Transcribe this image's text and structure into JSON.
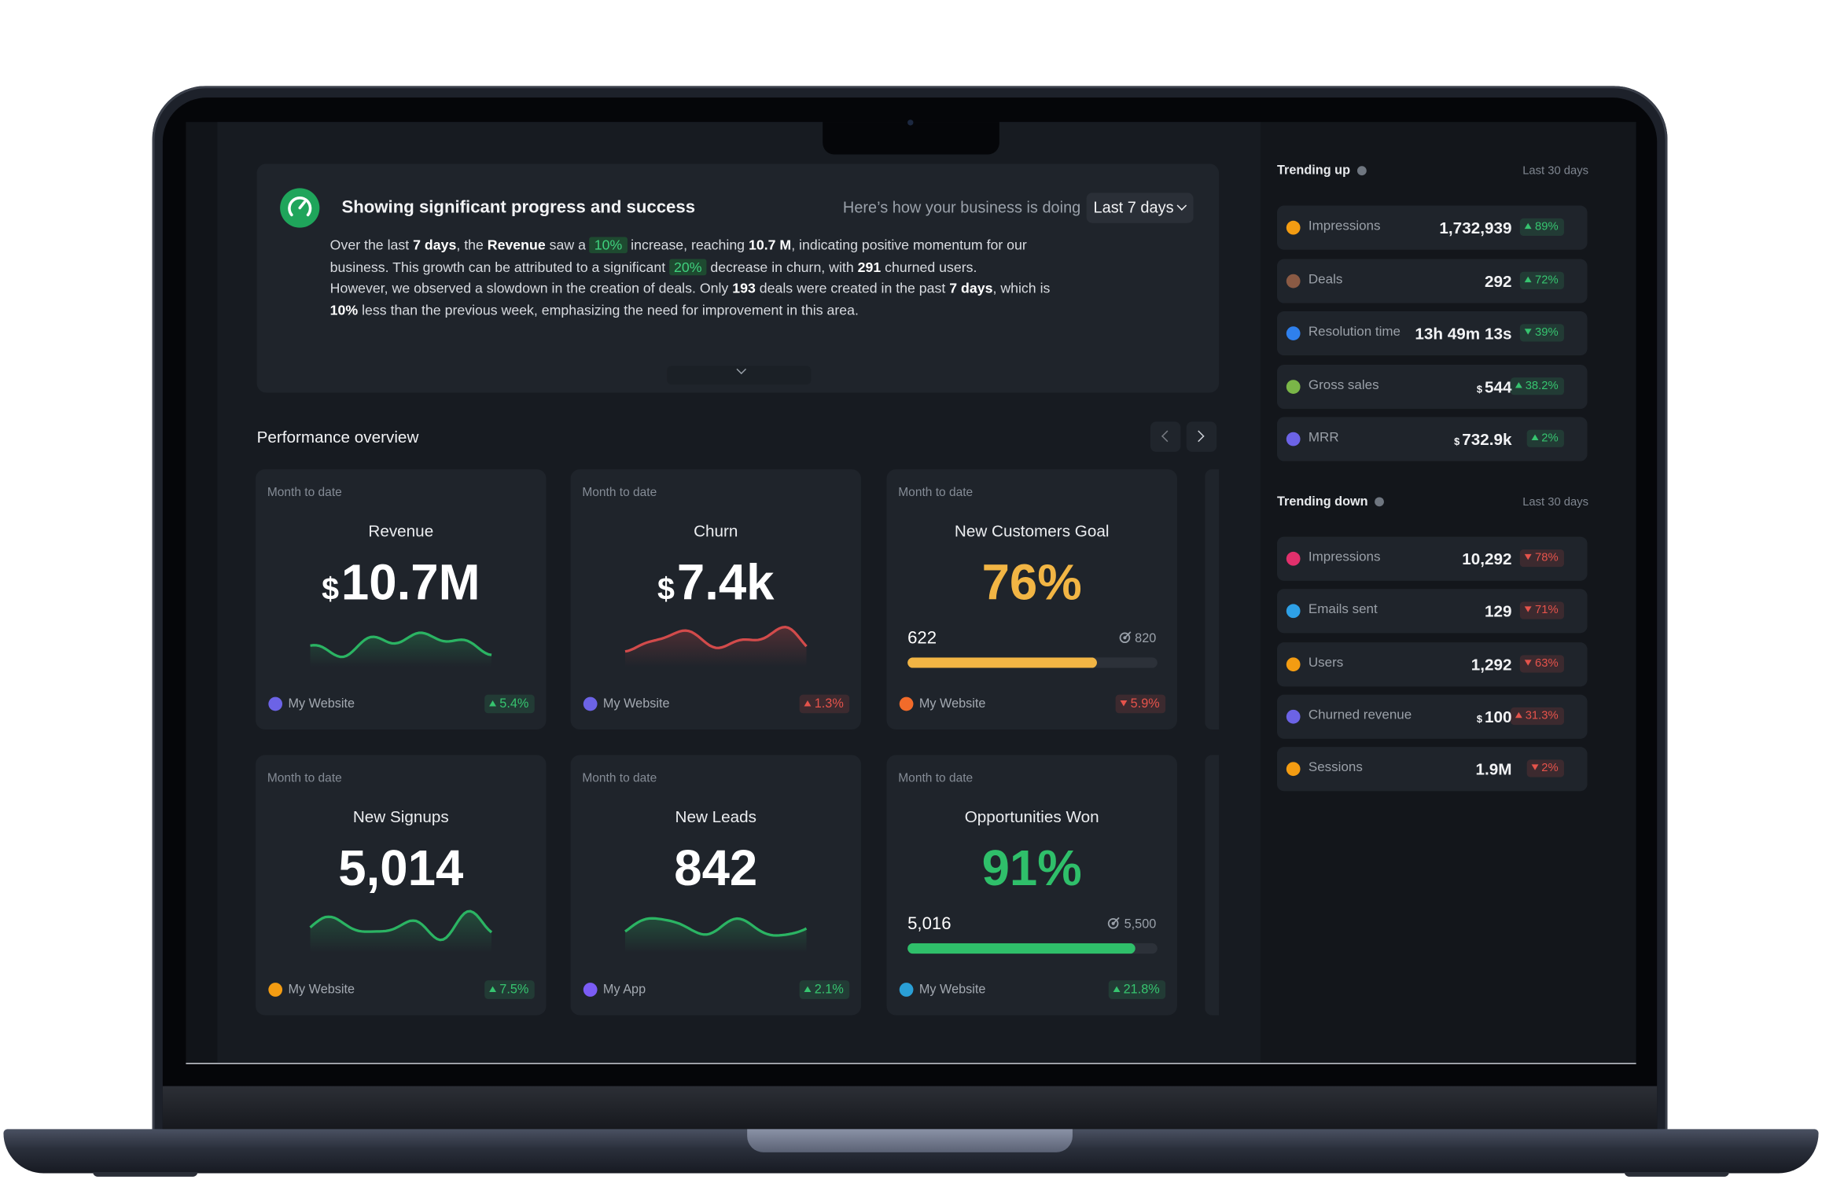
{
  "summary": {
    "title": "Showing significant progress and success",
    "prompt": "Here’s how your business is doing",
    "period": "Last 7 days",
    "segments": [
      "Over the last ",
      "7 days",
      ", the ",
      "Revenue",
      " saw a ",
      "10%",
      " increase, reaching ",
      "10.7 M",
      ", indicating positive momentum for our business. This growth can be attributed to a significant ",
      "20%",
      " decrease in churn, with ",
      "291",
      " churned users.",
      "However, we observed a slowdown in the creation of deals. Only ",
      "193",
      " deals were created in the past ",
      "7 days",
      ", which is ",
      "10%",
      " less than the previous week, emphasizing the need for improvement in this area."
    ]
  },
  "performance": {
    "title": "Performance overview",
    "cards": [
      {
        "period": "Month to date",
        "title": "Revenue",
        "currency": "$",
        "value": "10.7M",
        "line_color": "#2bb463",
        "source": "My Website",
        "source_icon": "#6c63e6",
        "change": "5.4%",
        "direction": "up",
        "change_color": "#36c46f"
      },
      {
        "period": "Month to date",
        "title": "Churn",
        "currency": "$",
        "value": "7.4k",
        "line_color": "#d24b4b",
        "source": "My Website",
        "source_icon": "#6c63e6",
        "change": "1.3%",
        "direction": "up",
        "change_color": "#e5534b"
      },
      {
        "period": "Month to date",
        "title": "New Customers Goal",
        "value": "76%",
        "value_color": "#f2b544",
        "current": 622,
        "goal": 820,
        "source": "My Website",
        "source_icon": "#f26b2a",
        "change": "5.9%",
        "direction": "down",
        "change_color": "#e5534b"
      },
      {
        "period": "Month to date",
        "title": "New Signups",
        "value": "5,014",
        "line_color": "#2bb463",
        "source": "My Website",
        "source_icon": "#f39c12",
        "change": "7.5%",
        "direction": "up",
        "change_color": "#36c46f"
      },
      {
        "period": "Month to date",
        "title": "New Leads",
        "value": "842",
        "line_color": "#2bb463",
        "source": "My App",
        "source_icon": "#7b5cf5",
        "change": "2.1%",
        "direction": "up",
        "change_color": "#36c46f"
      },
      {
        "period": "Month to date",
        "title": "Opportunities Won",
        "value": "91%",
        "value_color": "#2fbf6a",
        "current": {
          "value": 5016,
          "label": "5,016"
        },
        "goal": {
          "value": 5500,
          "label": "5,500"
        },
        "source": "My Website",
        "source_icon": "#2a9fd6",
        "change": "21.8%",
        "direction": "up",
        "change_color": "#36c46f"
      }
    ]
  },
  "trending_up": {
    "title": "Trending up",
    "period": "Last 30 days",
    "change_color": "#36c46f",
    "items": [
      {
        "name": "Impressions",
        "value": "1,732,939",
        "change": "89%",
        "direction": "up",
        "icon": "#f39c12"
      },
      {
        "name": "Deals",
        "value": "292",
        "change": "72%",
        "direction": "up",
        "icon": "#8a5a44"
      },
      {
        "name": "Resolution time",
        "value": "13h 49m 13s",
        "change": "39%",
        "direction": "down",
        "icon": "#2f80ed"
      },
      {
        "name": "Gross sales",
        "currency": "$",
        "value": "544",
        "change": "38.2%",
        "direction": "up",
        "icon": "#7ab648"
      },
      {
        "name": "MRR",
        "currency": "$",
        "value": "732.9k",
        "change": "2%",
        "direction": "up",
        "icon": "#6c63e6"
      }
    ]
  },
  "trending_down": {
    "title": "Trending down",
    "period": "Last 30 days",
    "change_color": "#e5534b",
    "items": [
      {
        "name": "Impressions",
        "value": "10,292",
        "change": "78%",
        "direction": "down",
        "icon": "#e1306c"
      },
      {
        "name": "Emails sent",
        "value": "129",
        "change": "71%",
        "direction": "down",
        "icon": "#2ea0e6"
      },
      {
        "name": "Users",
        "value": "1,292",
        "change": "63%",
        "direction": "down",
        "icon": "#f39c12"
      },
      {
        "name": "Churned revenue",
        "currency": "$",
        "value": "100",
        "change": "31.3%",
        "direction": "up",
        "icon": "#6c63e6"
      },
      {
        "name": "Sessions",
        "value": "1.9M",
        "change": "2%",
        "direction": "down",
        "icon": "#f39c12"
      }
    ]
  }
}
